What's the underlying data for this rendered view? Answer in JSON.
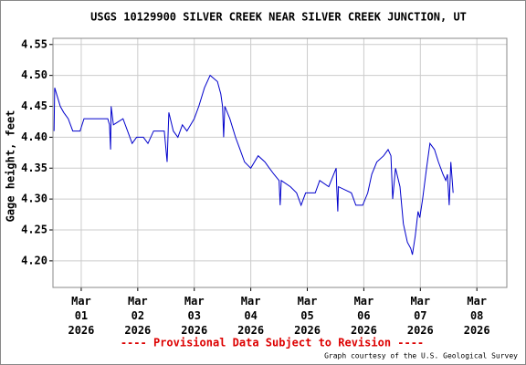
{
  "chart_data": {
    "type": "line",
    "title": "USGS 10129900 SILVER CREEK NEAR SILVER CREEK JUNCTION, UT",
    "y_label": "Gage height, feet",
    "annotation": "---- Provisional Data Subject to Revision ----",
    "credit": "Graph courtesy of the U.S. Geological Survey",
    "xlim": [
      0.5,
      8.53
    ],
    "ylim": [
      4.157,
      4.56
    ],
    "xticks": [
      {
        "value": 1,
        "label": "Mar\n01\n2026"
      },
      {
        "value": 2,
        "label": "Mar\n02\n2026"
      },
      {
        "value": 3,
        "label": "Mar\n03\n2026"
      },
      {
        "value": 4,
        "label": "Mar\n04\n2026"
      },
      {
        "value": 5,
        "label": "Mar\n05\n2026"
      },
      {
        "value": 6,
        "label": "Mar\n06\n2026"
      },
      {
        "value": 7,
        "label": "Mar\n07\n2026"
      },
      {
        "value": 8,
        "label": "Mar\n08\n2026"
      }
    ],
    "yticks": [
      {
        "value": 4.2,
        "label": "4.20"
      },
      4.25,
      {
        "value": 4.3,
        "label": "4.30"
      },
      4.35,
      {
        "value": 4.4,
        "label": "4.40"
      },
      4.45,
      {
        "value": 4.5,
        "label": "4.50"
      },
      4.55
    ],
    "grid": true,
    "x": [
      0.52,
      0.53,
      0.63,
      0.69,
      0.77,
      0.85,
      0.98,
      1.05,
      1.47,
      1.5,
      1.52,
      1.53,
      1.57,
      1.74,
      1.82,
      1.9,
      1.98,
      2.1,
      2.18,
      2.28,
      2.47,
      2.52,
      2.55,
      2.63,
      2.71,
      2.79,
      2.87,
      3.0,
      3.08,
      3.18,
      3.28,
      3.41,
      3.47,
      3.5,
      3.52,
      3.54,
      3.63,
      3.73,
      3.81,
      3.89,
      4.0,
      4.13,
      4.25,
      4.33,
      4.41,
      4.5,
      4.52,
      4.54,
      4.7,
      4.81,
      4.89,
      4.97,
      5.14,
      5.22,
      5.38,
      5.51,
      5.52,
      5.54,
      5.55,
      5.78,
      5.86,
      5.98,
      6.07,
      6.14,
      6.23,
      6.35,
      6.43,
      6.48,
      6.51,
      6.56,
      6.64,
      6.7,
      6.77,
      6.83,
      6.86,
      6.91,
      6.96,
      6.99,
      7.04,
      7.11,
      7.17,
      7.25,
      7.32,
      7.4,
      7.45,
      7.48,
      7.51,
      7.54,
      7.58
    ],
    "series": [
      {
        "color": "#0000cc",
        "values": [
          4.41,
          4.48,
          4.45,
          4.44,
          4.43,
          4.41,
          4.41,
          4.43,
          4.43,
          4.42,
          4.38,
          4.45,
          4.42,
          4.43,
          4.41,
          4.39,
          4.4,
          4.4,
          4.39,
          4.41,
          4.41,
          4.36,
          4.44,
          4.41,
          4.4,
          4.42,
          4.41,
          4.43,
          4.45,
          4.48,
          4.5,
          4.49,
          4.47,
          4.45,
          4.4,
          4.45,
          4.43,
          4.4,
          4.38,
          4.36,
          4.35,
          4.37,
          4.36,
          4.35,
          4.34,
          4.33,
          4.29,
          4.33,
          4.32,
          4.31,
          4.29,
          4.31,
          4.31,
          4.33,
          4.32,
          4.35,
          4.32,
          4.28,
          4.32,
          4.31,
          4.29,
          4.29,
          4.31,
          4.34,
          4.36,
          4.37,
          4.38,
          4.37,
          4.3,
          4.35,
          4.32,
          4.26,
          4.23,
          4.22,
          4.21,
          4.24,
          4.28,
          4.27,
          4.3,
          4.35,
          4.39,
          4.38,
          4.36,
          4.34,
          4.33,
          4.34,
          4.29,
          4.36,
          4.31
        ]
      }
    ]
  }
}
